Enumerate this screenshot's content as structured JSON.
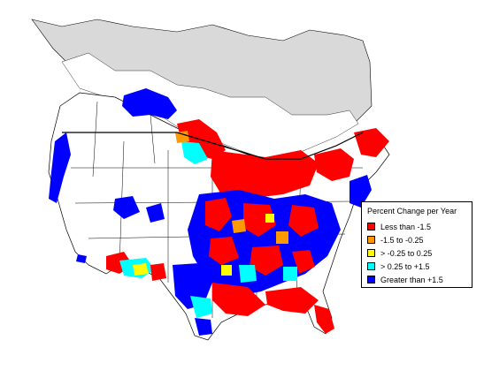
{
  "legend": {
    "title": "Percent Change per Year",
    "items": [
      {
        "label": "Less than -1.5",
        "color": "#ff0000"
      },
      {
        "label": "-1.5 to -0.25",
        "color": "#ff9900"
      },
      {
        "label": "> -0.25 to 0.25",
        "color": "#ffff00"
      },
      {
        "label": "> 0.25 to +1.5",
        "color": "#00ffff"
      },
      {
        "label": "Greater than +1.5",
        "color": "#0000ff"
      }
    ]
  },
  "colors": {
    "no_data_region": "#d9d9d9",
    "land": "#ffffff",
    "boundaries": "#000000"
  }
}
